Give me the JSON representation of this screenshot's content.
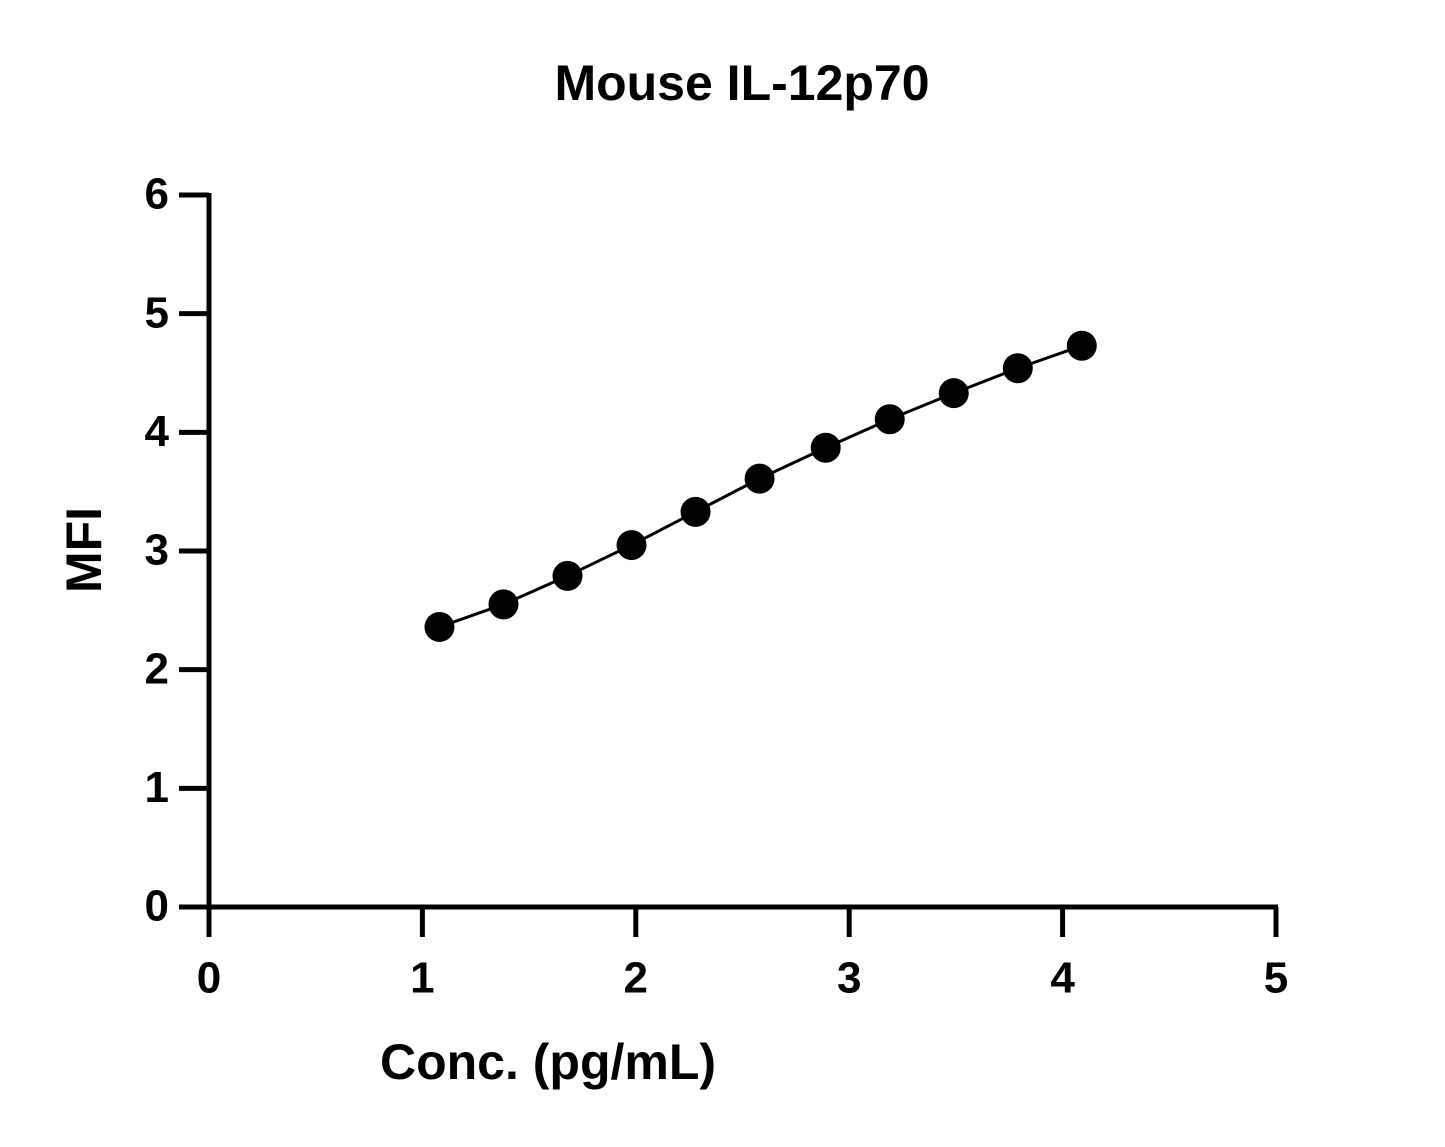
{
  "chart_data": {
    "type": "line",
    "title": "Mouse IL-12p70",
    "x_label": "Conc. (pg/mL)",
    "y_label": "MFI",
    "x": [
      1.08,
      1.38,
      1.68,
      1.98,
      2.28,
      2.58,
      2.89,
      3.19,
      3.49,
      3.79,
      4.09
    ],
    "series": [
      {
        "color": "#000000",
        "values": [
          2.36,
          2.55,
          2.79,
          3.05,
          3.33,
          3.61,
          3.87,
          4.11,
          4.33,
          4.54,
          4.73
        ]
      }
    ],
    "xlim": [
      0,
      5
    ],
    "xticks": [
      0,
      1,
      2,
      3,
      4,
      5
    ],
    "ylim": [
      0,
      6
    ],
    "yticks": [
      0,
      1,
      2,
      3,
      4,
      5,
      6
    ]
  }
}
